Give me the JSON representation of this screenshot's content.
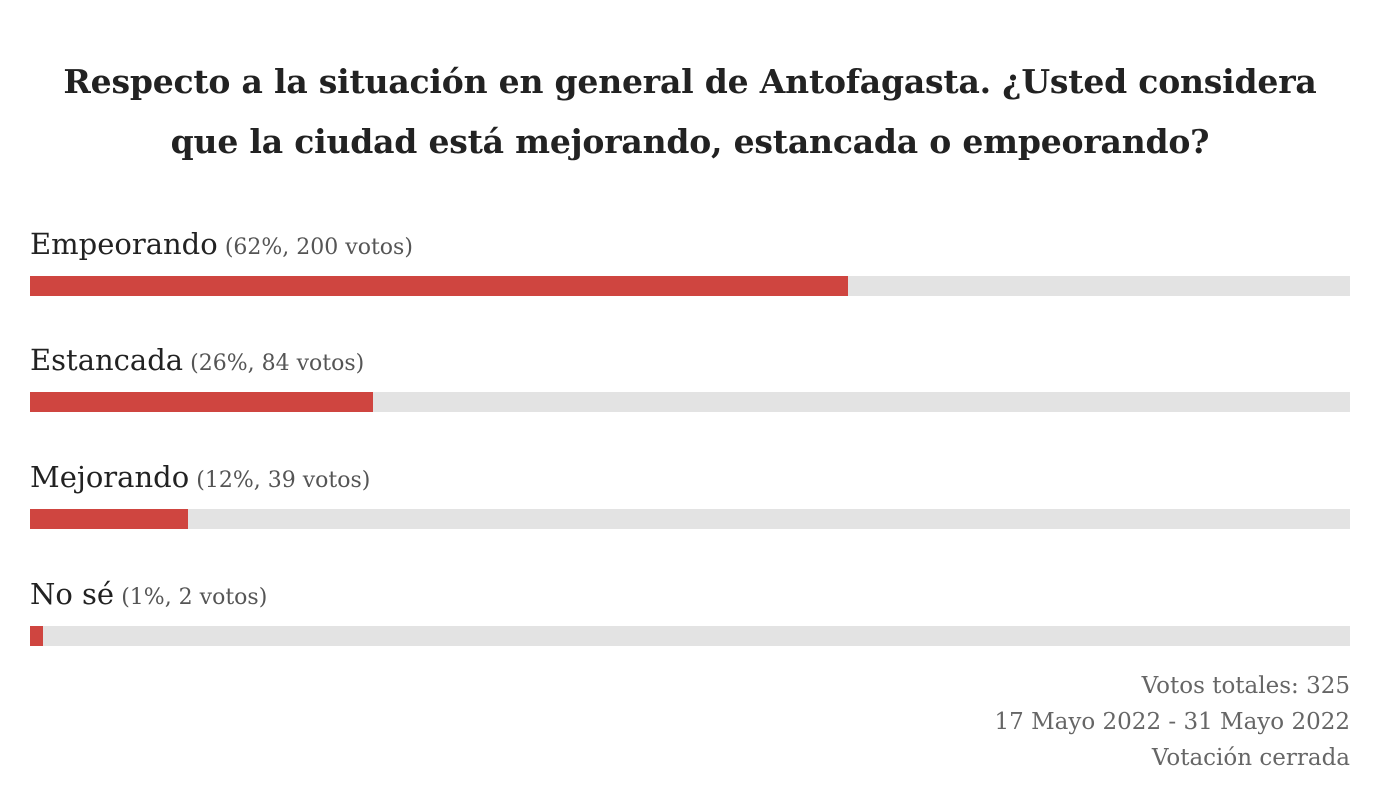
{
  "poll": {
    "title": "Respecto a la situación en general de Antofagasta. ¿Usted considera que la ciudad está mejorando, estancada o empeorando?",
    "options": [
      {
        "label": "Empeorando",
        "stats": "(62%, 200 votos)",
        "percent": 62,
        "votes": 200
      },
      {
        "label": "Estancada",
        "stats": "(26%, 84 votos)",
        "percent": 26,
        "votes": 84
      },
      {
        "label": "Mejorando",
        "stats": "(12%, 39 votos)",
        "percent": 12,
        "votes": 39
      },
      {
        "label": "No sé",
        "stats": "(1%, 2 votos)",
        "percent": 1,
        "votes": 2
      }
    ],
    "total_votes_text": "Votos totales: 325",
    "date_range": "17 Mayo 2022 - 31 Mayo 2022",
    "status": "Votación cerrada"
  },
  "colors": {
    "bar_fill": "#cf4540",
    "bar_track": "#e3e3e3",
    "text": "#222222",
    "muted_text": "#666666"
  }
}
